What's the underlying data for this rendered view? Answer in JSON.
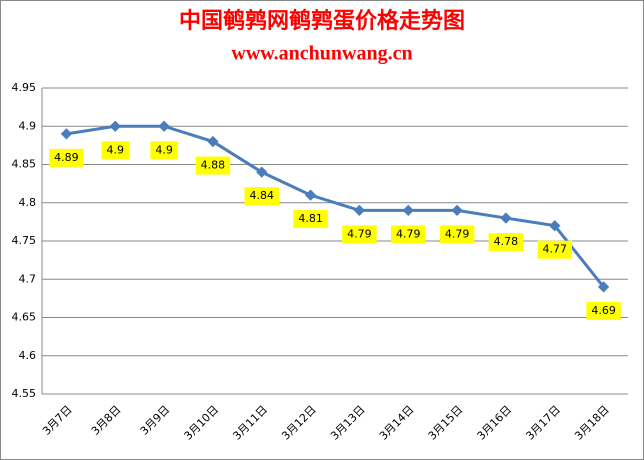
{
  "chart_data": {
    "type": "line",
    "title": "中国鹌鹑网鹌鹑蛋价格走势图",
    "subtitle": "www.anchunwang.cn",
    "categories": [
      "3月7日",
      "3月8日",
      "3月9日",
      "3月10日",
      "3月11日",
      "3月12日",
      "3月13日",
      "3月14日",
      "3月15日",
      "3月16日",
      "3月17日",
      "3月18日"
    ],
    "values": [
      4.89,
      4.9,
      4.9,
      4.88,
      4.84,
      4.81,
      4.79,
      4.79,
      4.79,
      4.78,
      4.77,
      4.69
    ],
    "color": "#4a7ebb",
    "label_color": "#ffff00",
    "ylim": [
      4.55,
      4.95
    ],
    "yticks": [
      4.55,
      4.6,
      4.65,
      4.7,
      4.75,
      4.8,
      4.85,
      4.9,
      4.95
    ],
    "grid": true
  }
}
